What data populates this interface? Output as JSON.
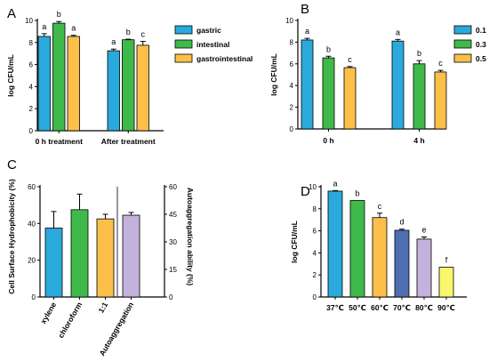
{
  "colors": {
    "blue": "#2aa9dc",
    "green": "#3fba4a",
    "orange": "#fbbf4a",
    "purple": "#c4b2dc",
    "navy": "#4f6eb0",
    "yellow": "#f9f66e",
    "axis": "#000000"
  },
  "chart_data": [
    {
      "panel": "A",
      "type": "bar",
      "ylabel": "log CFU/mL",
      "ylim": [
        0,
        10
      ],
      "yticks": [
        0,
        2,
        4,
        6,
        8,
        10
      ],
      "categories": [
        "0 h treatment",
        "After treatment"
      ],
      "legend_position": "right",
      "series": [
        {
          "name": "gastric",
          "color": "blue",
          "values": [
            8.55,
            7.25
          ],
          "errors": [
            0.25,
            0.15
          ],
          "labels": [
            "a",
            "a"
          ]
        },
        {
          "name": "intestinal",
          "color": "green",
          "values": [
            9.75,
            8.25
          ],
          "errors": [
            0.15,
            0.05
          ],
          "labels": [
            "b",
            "b"
          ]
        },
        {
          "name": "gastrointestinal",
          "color": "orange",
          "values": [
            8.55,
            7.75
          ],
          "errors": [
            0.1,
            0.35
          ],
          "labels": [
            "a",
            "c"
          ]
        }
      ]
    },
    {
      "panel": "B",
      "type": "bar",
      "ylabel": "log CFU/mL",
      "ylim": [
        0,
        10
      ],
      "yticks": [
        0,
        2,
        4,
        6,
        8,
        10
      ],
      "categories": [
        "0 h",
        "4 h"
      ],
      "legend_position": "right",
      "series": [
        {
          "name": "0.1",
          "color": "blue",
          "values": [
            8.2,
            8.1
          ],
          "errors": [
            0.15,
            0.15
          ],
          "labels": [
            "a",
            "a"
          ]
        },
        {
          "name": "0.3",
          "color": "green",
          "values": [
            6.55,
            6.0
          ],
          "errors": [
            0.15,
            0.3
          ],
          "labels": [
            "b",
            "b"
          ]
        },
        {
          "name": "0.5",
          "color": "orange",
          "values": [
            5.65,
            5.25
          ],
          "errors": [
            0.1,
            0.15
          ],
          "labels": [
            "c",
            "c"
          ]
        }
      ]
    },
    {
      "panel": "C",
      "type": "bar",
      "ylabel": "Cell Surface Hydrophobicity (%)",
      "ylabel_right": "Autoaggregation ability (%)",
      "ylim": [
        0,
        60
      ],
      "yticks": [
        0,
        20,
        40,
        60
      ],
      "ylim_right": [
        0,
        60
      ],
      "yticks_right": [
        0,
        15,
        30,
        45,
        60
      ],
      "categories": [
        "xylene",
        "chloroform",
        "1:1",
        "Autoaggregation"
      ],
      "colors": [
        "blue",
        "green",
        "orange",
        "purple"
      ],
      "values": [
        37.5,
        47.5,
        42.5,
        44.5
      ],
      "errors": [
        9,
        8.5,
        2.5,
        1.5
      ]
    },
    {
      "panel": "D",
      "type": "bar",
      "ylabel": "log CFU/mL",
      "ylim": [
        0,
        10
      ],
      "yticks": [
        0,
        2,
        4,
        6,
        8,
        10
      ],
      "categories": [
        "37℃",
        "50℃",
        "60℃",
        "70℃",
        "80℃",
        "90℃"
      ],
      "colors": [
        "blue",
        "green",
        "orange",
        "navy",
        "purple",
        "yellow"
      ],
      "values": [
        9.6,
        8.75,
        7.2,
        6.05,
        5.25,
        2.7
      ],
      "errors": [
        0.05,
        0,
        0.4,
        0.1,
        0.2,
        0
      ],
      "labels": [
        "a",
        "b",
        "c",
        "d",
        "e",
        "f"
      ]
    }
  ]
}
